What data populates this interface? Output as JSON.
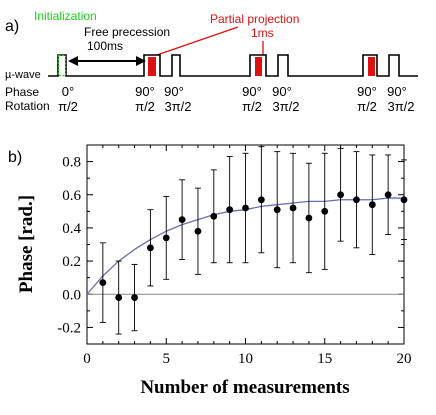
{
  "panel_a": {
    "label": "a)",
    "annotations": {
      "initialization": "Initialization",
      "free_precession": "Free precession",
      "free_precession_time": "100ms",
      "partial_projection": "Partial projection",
      "partial_projection_time": "1ms"
    },
    "rows": {
      "microwave": "µ-wave",
      "phase": "Phase",
      "rotation": "Rotation"
    },
    "phase_labels": [
      "0°",
      "90°",
      "90°",
      "90°",
      "90°",
      "90°",
      "90°"
    ],
    "rotation_labels": [
      "π/2",
      "π/2",
      "3π/2",
      "π/2",
      "3π/2",
      "π/2",
      "3π/2"
    ],
    "colors": {
      "initialization": "#22cc22",
      "projection": "#dd1111",
      "pulse": "#000000"
    }
  },
  "chart_data": {
    "panel_label": "b)",
    "type": "scatter",
    "xlabel": "Number of measurements",
    "ylabel": "Phase [rad.]",
    "xlim": [
      0,
      20
    ],
    "ylim": [
      -0.3,
      0.9
    ],
    "xticks": [
      0,
      5,
      10,
      15,
      20
    ],
    "yticks": [
      -0.2,
      0.0,
      0.2,
      0.4,
      0.6,
      0.8
    ],
    "ytick_labels": [
      "-0.2",
      "0.0",
      "0.2",
      "0.4",
      "0.6",
      "0.8"
    ],
    "grid": false,
    "points": {
      "x": [
        1,
        2,
        3,
        4,
        5,
        6,
        7,
        8,
        9,
        10,
        11,
        12,
        13,
        14,
        15,
        16,
        17,
        18,
        19,
        20
      ],
      "y": [
        0.07,
        -0.02,
        -0.02,
        0.28,
        0.34,
        0.45,
        0.38,
        0.47,
        0.51,
        0.52,
        0.57,
        0.51,
        0.52,
        0.46,
        0.5,
        0.6,
        0.57,
        0.54,
        0.6,
        0.57
      ],
      "yerr": [
        0.24,
        0.22,
        0.2,
        0.23,
        0.25,
        0.24,
        0.26,
        0.28,
        0.32,
        0.33,
        0.32,
        0.35,
        0.33,
        0.33,
        0.35,
        0.28,
        0.29,
        0.3,
        0.24,
        0.24
      ]
    },
    "fit": {
      "x": [
        0,
        1,
        2,
        3,
        4,
        5,
        6,
        7,
        8,
        9,
        10,
        11,
        12,
        13,
        14,
        15,
        16,
        17,
        18,
        19,
        20
      ],
      "y": [
        0.0,
        0.11,
        0.2,
        0.27,
        0.33,
        0.38,
        0.42,
        0.45,
        0.48,
        0.5,
        0.51,
        0.53,
        0.54,
        0.55,
        0.56,
        0.56,
        0.57,
        0.57,
        0.57,
        0.58,
        0.58
      ]
    },
    "reference_line_y": 0.0,
    "colors": {
      "points": "#000000",
      "fit": "#6a6fb0",
      "reference": "#888888"
    }
  }
}
